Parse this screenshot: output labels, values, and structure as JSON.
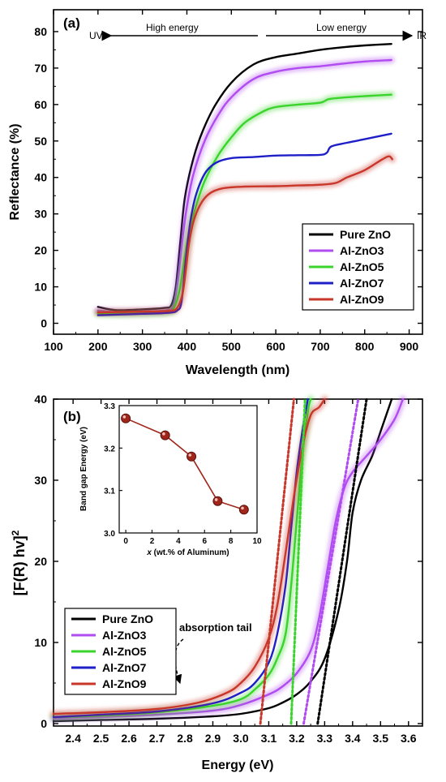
{
  "chart_data": [
    {
      "type": "line",
      "panel_label": "(a)",
      "xlabel": "Wavelength (nm)",
      "ylabel": "Reflectance (%)",
      "xlim": [
        100,
        930
      ],
      "ylim": [
        -3,
        86
      ],
      "xticks": [
        100,
        200,
        300,
        400,
        500,
        600,
        700,
        800,
        900
      ],
      "yticks": [
        0,
        10,
        20,
        30,
        40,
        50,
        60,
        70,
        80
      ],
      "annotations": {
        "uv": "UV",
        "ir": "IR",
        "high": "High energy",
        "low": "Low energy"
      },
      "legend": {
        "position": "bottom-right",
        "entries": [
          "Pure ZnO",
          "Al-ZnO3",
          "Al-ZnO5",
          "Al-ZnO7",
          "Al-ZnO9"
        ]
      },
      "series": [
        {
          "name": "Pure ZnO",
          "color": "#000000",
          "glow": false,
          "points": [
            [
              200,
              4.5
            ],
            [
              240,
              3.6
            ],
            [
              300,
              3.8
            ],
            [
              350,
              4.2
            ],
            [
              365,
              5
            ],
            [
              375,
              10
            ],
            [
              385,
              22
            ],
            [
              395,
              34
            ],
            [
              410,
              43
            ],
            [
              430,
              51
            ],
            [
              460,
              59
            ],
            [
              500,
              66
            ],
            [
              550,
              71
            ],
            [
              600,
              73
            ],
            [
              650,
              74
            ],
            [
              700,
              75
            ],
            [
              750,
              75.7
            ],
            [
              800,
              76.2
            ],
            [
              860,
              76.6
            ]
          ]
        },
        {
          "name": "Al-ZnO3",
          "color": "#b14cf0",
          "glow": true,
          "points": [
            [
              200,
              3.5
            ],
            [
              250,
              3
            ],
            [
              300,
              3.2
            ],
            [
              355,
              3.6
            ],
            [
              370,
              5
            ],
            [
              380,
              12
            ],
            [
              390,
              23
            ],
            [
              400,
              32
            ],
            [
              415,
              41
            ],
            [
              440,
              50
            ],
            [
              470,
              57
            ],
            [
              500,
              62
            ],
            [
              550,
              67
            ],
            [
              600,
              69
            ],
            [
              650,
              70
            ],
            [
              700,
              70.5
            ],
            [
              750,
              71.2
            ],
            [
              800,
              71.8
            ],
            [
              860,
              72.2
            ]
          ]
        },
        {
          "name": "Al-ZnO5",
          "color": "#3ad42c",
          "glow": true,
          "points": [
            [
              200,
              2.7
            ],
            [
              250,
              2.6
            ],
            [
              300,
              2.7
            ],
            [
              355,
              3
            ],
            [
              370,
              4
            ],
            [
              385,
              10
            ],
            [
              395,
              18
            ],
            [
              405,
              25
            ],
            [
              420,
              32
            ],
            [
              440,
              39
            ],
            [
              470,
              46
            ],
            [
              500,
              51
            ],
            [
              530,
              55
            ],
            [
              570,
              58
            ],
            [
              600,
              59.3
            ],
            [
              650,
              60
            ],
            [
              700,
              60.5
            ],
            [
              720,
              61.5
            ],
            [
              760,
              62
            ],
            [
              800,
              62.3
            ],
            [
              860,
              62.7
            ]
          ]
        },
        {
          "name": "Al-ZnO7",
          "color": "#1f1fc8",
          "glow": false,
          "points": [
            [
              200,
              2.2
            ],
            [
              250,
              2.4
            ],
            [
              300,
              2.6
            ],
            [
              360,
              2.9
            ],
            [
              378,
              3.5
            ],
            [
              388,
              6
            ],
            [
              398,
              18
            ],
            [
              408,
              28
            ],
            [
              420,
              35
            ],
            [
              440,
              41
            ],
            [
              465,
              44
            ],
            [
              500,
              45.3
            ],
            [
              550,
              45.6
            ],
            [
              600,
              46
            ],
            [
              650,
              46.1
            ],
            [
              700,
              46.2
            ],
            [
              715,
              46.8
            ],
            [
              725,
              48.5
            ],
            [
              760,
              49.5
            ],
            [
              800,
              50.5
            ],
            [
              860,
              52
            ]
          ]
        },
        {
          "name": "Al-ZnO9",
          "color": "#c8372a",
          "glow": true,
          "points": [
            [
              200,
              3
            ],
            [
              250,
              3.1
            ],
            [
              300,
              3.2
            ],
            [
              360,
              3.4
            ],
            [
              378,
              4.2
            ],
            [
              390,
              8
            ],
            [
              398,
              15
            ],
            [
              405,
              22
            ],
            [
              415,
              28
            ],
            [
              430,
              32.5
            ],
            [
              450,
              35.5
            ],
            [
              480,
              37
            ],
            [
              530,
              37.5
            ],
            [
              600,
              37.6
            ],
            [
              650,
              37.8
            ],
            [
              700,
              38
            ],
            [
              735,
              38.5
            ],
            [
              760,
              40
            ],
            [
              800,
              42
            ],
            [
              840,
              45
            ],
            [
              855,
              45.8
            ],
            [
              862,
              45
            ]
          ]
        }
      ]
    },
    {
      "type": "line",
      "panel_label": "(b)",
      "xlabel": "Energy (eV)",
      "ylabel": "[F(R) hv]",
      "ylabel_sup": "2",
      "xlim": [
        2.33,
        3.65
      ],
      "ylim": [
        -0.3,
        40
      ],
      "xticks": [
        2.4,
        2.5,
        2.6,
        2.7,
        2.8,
        2.9,
        3.0,
        3.1,
        3.2,
        3.3,
        3.4,
        3.5,
        3.6
      ],
      "xtick_labels": [
        "2.4",
        "2.5",
        "2.6",
        "2.7",
        "2.8",
        "2.9",
        "3.0",
        "3.1",
        "3.2",
        "3.3",
        "3.4",
        "3.5",
        "3.6"
      ],
      "yticks": [
        0,
        10,
        20,
        30,
        40
      ],
      "annotation": "absorption tail",
      "legend": {
        "position": "bottom-left",
        "entries": [
          "Pure ZnO",
          "Al-ZnO3",
          "Al-ZnO5",
          "Al-ZnO7",
          "Al-ZnO9"
        ]
      },
      "series": [
        {
          "name": "Pure ZnO",
          "color": "#000000",
          "glow": false,
          "points": [
            [
              2.33,
              0.3
            ],
            [
              2.5,
              0.45
            ],
            [
              2.7,
              0.6
            ],
            [
              2.9,
              0.9
            ],
            [
              3.0,
              1.2
            ],
            [
              3.1,
              1.9
            ],
            [
              3.15,
              2.6
            ],
            [
              3.2,
              3.6
            ],
            [
              3.25,
              5.2
            ],
            [
              3.3,
              8
            ],
            [
              3.35,
              14
            ],
            [
              3.38,
              20
            ],
            [
              3.4,
              26
            ],
            [
              3.43,
              30
            ],
            [
              3.47,
              33
            ],
            [
              3.5,
              36
            ],
            [
              3.54,
              40
            ]
          ]
        },
        {
          "name": "Al-ZnO3",
          "color": "#b14cf0",
          "glow": true,
          "points": [
            [
              2.33,
              0.6
            ],
            [
              2.5,
              0.8
            ],
            [
              2.7,
              1.1
            ],
            [
              2.9,
              1.6
            ],
            [
              3.0,
              2.3
            ],
            [
              3.1,
              3.6
            ],
            [
              3.15,
              4.6
            ],
            [
              3.2,
              6.2
            ],
            [
              3.25,
              9
            ],
            [
              3.28,
              13
            ],
            [
              3.31,
              19
            ],
            [
              3.34,
              25
            ],
            [
              3.37,
              29
            ],
            [
              3.4,
              31
            ],
            [
              3.45,
              33
            ],
            [
              3.5,
              35
            ],
            [
              3.55,
              37.5
            ],
            [
              3.58,
              40
            ]
          ]
        },
        {
          "name": "Al-ZnO5",
          "color": "#3ad42c",
          "glow": true,
          "points": [
            [
              2.33,
              0.8
            ],
            [
              2.5,
              1
            ],
            [
              2.7,
              1.4
            ],
            [
              2.9,
              2.2
            ],
            [
              3.0,
              3
            ],
            [
              3.05,
              4.2
            ],
            [
              3.1,
              6
            ],
            [
              3.13,
              8
            ],
            [
              3.16,
              11
            ],
            [
              3.18,
              17
            ],
            [
              3.2,
              25
            ],
            [
              3.22,
              33
            ],
            [
              3.24,
              38.5
            ],
            [
              3.25,
              40
            ]
          ]
        },
        {
          "name": "Al-ZnO7",
          "color": "#1f1fc8",
          "glow": false,
          "points": [
            [
              2.33,
              0.8
            ],
            [
              2.5,
              1.1
            ],
            [
              2.7,
              1.5
            ],
            [
              2.9,
              2.5
            ],
            [
              3.0,
              3.8
            ],
            [
              3.05,
              5
            ],
            [
              3.1,
              7.5
            ],
            [
              3.13,
              11
            ],
            [
              3.16,
              17
            ],
            [
              3.18,
              24
            ],
            [
              3.2,
              31
            ],
            [
              3.22,
              36
            ],
            [
              3.24,
              40
            ]
          ]
        },
        {
          "name": "Al-ZnO9",
          "color": "#c8372a",
          "glow": true,
          "points": [
            [
              2.33,
              1.2
            ],
            [
              2.5,
              1.4
            ],
            [
              2.7,
              1.8
            ],
            [
              2.85,
              2.6
            ],
            [
              2.95,
              3.8
            ],
            [
              3.0,
              5
            ],
            [
              3.05,
              7
            ],
            [
              3.1,
              10.5
            ],
            [
              3.13,
              14.5
            ],
            [
              3.16,
              21
            ],
            [
              3.19,
              28
            ],
            [
              3.22,
              34
            ],
            [
              3.25,
              38
            ],
            [
              3.28,
              39
            ],
            [
              3.3,
              40
            ]
          ]
        }
      ],
      "fit_lines": [
        {
          "series": "Al-ZnO9",
          "color": "#c8372a",
          "from": [
            3.07,
            0
          ],
          "to": [
            3.19,
            40
          ]
        },
        {
          "series": "Al-ZnO5",
          "color": "#3ad42c",
          "from": [
            3.18,
            0
          ],
          "to": [
            3.23,
            40
          ]
        },
        {
          "series": "Al-ZnO3",
          "color": "#b14cf0",
          "from": [
            3.225,
            0
          ],
          "to": [
            3.42,
            40
          ]
        },
        {
          "series": "Pure ZnO",
          "color": "#000000",
          "from": [
            3.275,
            0
          ],
          "to": [
            3.45,
            40
          ]
        }
      ],
      "inset": {
        "type": "line",
        "xlabel": "x (wt.% of Aluminum)",
        "xlabel_italic": "x",
        "xlabel_rest": " (wt.% of Aluminum)",
        "ylabel": "Band gap Energy (eV)",
        "xlim": [
          -0.5,
          10
        ],
        "ylim": [
          3.0,
          3.3
        ],
        "xticks": [
          0,
          2,
          4,
          6,
          8,
          10
        ],
        "yticks": [
          3.0,
          3.1,
          3.2,
          3.3
        ],
        "ytick_labels": [
          "3.0",
          "3.1",
          "3.2",
          "3.3"
        ],
        "color": "#a0261c",
        "x": [
          0,
          3,
          5,
          7,
          9
        ],
        "y": [
          3.27,
          3.23,
          3.18,
          3.075,
          3.055
        ]
      }
    }
  ]
}
